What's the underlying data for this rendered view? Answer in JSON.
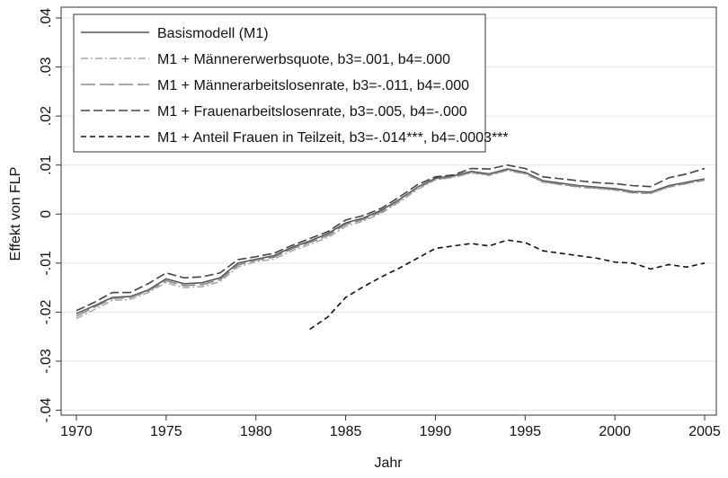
{
  "chart_data": {
    "type": "line",
    "x_label": "Jahr",
    "y_label": "Effekt von FLP",
    "x": [
      1970,
      1971,
      1972,
      1973,
      1974,
      1975,
      1976,
      1977,
      1978,
      1979,
      1980,
      1981,
      1982,
      1983,
      1984,
      1985,
      1986,
      1987,
      1988,
      1989,
      1990,
      1991,
      1992,
      1993,
      1994,
      1995,
      1996,
      1997,
      1998,
      1999,
      2000,
      2001,
      2002,
      2003,
      2004,
      2005
    ],
    "series": [
      {
        "name": "Basismodell (M1)",
        "color": "#555555",
        "dash": "solid",
        "values": [
          -0.0203,
          -0.0187,
          -0.017,
          -0.0168,
          -0.0155,
          -0.0132,
          -0.0142,
          -0.014,
          -0.013,
          -0.01,
          -0.0092,
          -0.0085,
          -0.0068,
          -0.0055,
          -0.004,
          -0.0018,
          -0.0008,
          0.0008,
          0.003,
          0.0055,
          0.0073,
          0.0078,
          0.0087,
          0.0082,
          0.0092,
          0.0085,
          0.0068,
          0.0063,
          0.0058,
          0.0055,
          0.0052,
          0.0046,
          0.0045,
          0.0058,
          0.0065,
          0.0072
        ]
      },
      {
        "name": "M1 + Männererwerbsquote, b3=.001, b4=.000",
        "color": "#aaaaaa",
        "dash": "dash-dot",
        "values": [
          -0.0213,
          -0.0195,
          -0.0176,
          -0.0174,
          -0.016,
          -0.014,
          -0.015,
          -0.0148,
          -0.0138,
          -0.0108,
          -0.0097,
          -0.0092,
          -0.0075,
          -0.0062,
          -0.0048,
          -0.0025,
          -0.0014,
          0.0002,
          0.0025,
          0.005,
          0.007,
          0.0075,
          0.0084,
          0.0079,
          0.0089,
          0.0082,
          0.0065,
          0.006,
          0.0055,
          0.0052,
          0.0049,
          0.0043,
          0.0042,
          0.0055,
          0.0062,
          0.0069
        ]
      },
      {
        "name": "M1 + Männerarbeitslosenrate, b3=-.011, b4=.000",
        "color": "#888888",
        "dash": "long-dash",
        "values": [
          -0.0208,
          -0.019,
          -0.0172,
          -0.017,
          -0.0157,
          -0.0136,
          -0.0146,
          -0.0144,
          -0.0134,
          -0.0104,
          -0.0094,
          -0.0088,
          -0.0071,
          -0.0058,
          -0.0044,
          -0.0021,
          -0.0011,
          0.0005,
          0.0028,
          0.0053,
          0.0071,
          0.0076,
          0.0085,
          0.008,
          0.009,
          0.0083,
          0.0066,
          0.0061,
          0.0056,
          0.0053,
          0.005,
          0.0044,
          0.0043,
          0.0056,
          0.0063,
          0.007
        ]
      },
      {
        "name": "M1 + Frauenarbeitslosenrate, b3=.005, b4=-.000",
        "color": "#444444",
        "dash": "dash",
        "values": [
          -0.0197,
          -0.018,
          -0.016,
          -0.016,
          -0.0142,
          -0.012,
          -0.013,
          -0.0128,
          -0.012,
          -0.0093,
          -0.0087,
          -0.008,
          -0.0064,
          -0.005,
          -0.0036,
          -0.0012,
          -0.0003,
          0.0012,
          0.0035,
          0.006,
          0.0076,
          0.008,
          0.0093,
          0.0092,
          0.01,
          0.0093,
          0.0076,
          0.0072,
          0.0068,
          0.0064,
          0.0062,
          0.0058,
          0.0056,
          0.0074,
          0.0082,
          0.0093
        ]
      },
      {
        "name": "M1 + Anteil Frauen in Teilzeit, b3=-.014***, b4=.0003***",
        "color": "#111111",
        "dash": "short-dash",
        "values": [
          null,
          null,
          null,
          null,
          null,
          null,
          null,
          null,
          null,
          null,
          null,
          null,
          null,
          -0.0235,
          -0.021,
          -0.017,
          -0.0148,
          -0.0128,
          -0.011,
          -0.009,
          -0.007,
          -0.0065,
          -0.006,
          -0.0065,
          -0.0053,
          -0.0058,
          -0.0075,
          -0.008,
          -0.0085,
          -0.009,
          -0.0098,
          -0.01,
          -0.0112,
          -0.0103,
          -0.0108,
          -0.01
        ]
      }
    ],
    "xlim": [
      1969.15,
      2005.65
    ],
    "xticks": [
      1970,
      1975,
      1980,
      1985,
      1990,
      1995,
      2000,
      2005
    ],
    "ylim": [
      -0.041,
      0.0422
    ],
    "yticks": [
      {
        "value": -0.04,
        "label": "-.04"
      },
      {
        "value": -0.03,
        "label": "-.03"
      },
      {
        "value": -0.02,
        "label": "-.02"
      },
      {
        "value": -0.01,
        "label": "-.01"
      },
      0,
      {
        "value": 0.01,
        "label": ".01"
      },
      {
        "value": 0.02,
        "label": ".02"
      },
      {
        "value": 0.03,
        "label": ".03"
      },
      {
        "value": 0.04,
        "label": ".04"
      }
    ],
    "grid": true,
    "legend": "upper-left"
  }
}
